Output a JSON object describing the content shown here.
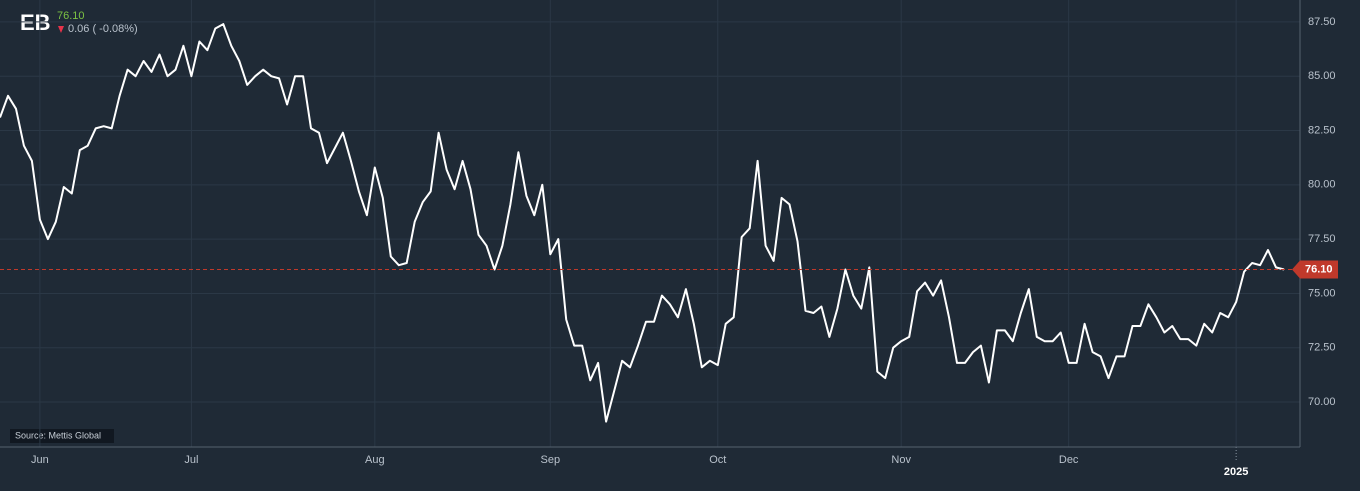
{
  "chart_data": {
    "type": "line",
    "ticker": "EB",
    "last_price": {
      "value": 76.1,
      "label": "76.10"
    },
    "change_text": "0.06 ( -0.08%)",
    "source": "Source: Mettis Global",
    "categories": [
      null,
      null,
      null,
      null,
      null,
      "Jun",
      null,
      null,
      null,
      null,
      null,
      null,
      null,
      null,
      null,
      null,
      null,
      null,
      null,
      null,
      null,
      null,
      null,
      null,
      "Jul",
      null,
      null,
      null,
      null,
      null,
      null,
      null,
      null,
      null,
      null,
      null,
      null,
      null,
      null,
      null,
      null,
      null,
      null,
      null,
      null,
      null,
      null,
      "Aug",
      null,
      null,
      null,
      null,
      null,
      null,
      null,
      null,
      null,
      null,
      null,
      null,
      null,
      null,
      null,
      null,
      null,
      null,
      null,
      null,
      null,
      "Sep",
      null,
      null,
      null,
      null,
      null,
      null,
      null,
      null,
      null,
      null,
      null,
      null,
      null,
      null,
      null,
      null,
      null,
      null,
      null,
      null,
      "Oct",
      null,
      null,
      null,
      null,
      null,
      null,
      null,
      null,
      null,
      null,
      null,
      null,
      null,
      null,
      null,
      null,
      null,
      null,
      null,
      null,
      null,
      null,
      "Nov",
      null,
      null,
      null,
      null,
      null,
      null,
      null,
      null,
      null,
      null,
      null,
      null,
      null,
      null,
      null,
      null,
      null,
      null,
      null,
      null,
      "Dec",
      null,
      null,
      null,
      null,
      null,
      null,
      null,
      null,
      null,
      null,
      null,
      null,
      null,
      null,
      null,
      null,
      null,
      null,
      null,
      null,
      "2025",
      null,
      null,
      null,
      null,
      null,
      null
    ],
    "series": [
      {
        "name": "EB",
        "color": "#ffffff",
        "values": [
          83.1,
          84.1,
          83.5,
          81.8,
          81.1,
          78.4,
          77.5,
          78.3,
          79.9,
          79.6,
          81.6,
          81.8,
          82.6,
          82.7,
          82.6,
          84.1,
          85.3,
          85.0,
          85.7,
          85.2,
          86.0,
          85.0,
          85.3,
          86.4,
          85.0,
          86.6,
          86.2,
          87.2,
          87.4,
          86.4,
          85.7,
          84.6,
          85.0,
          85.3,
          85.0,
          84.9,
          83.7,
          85.0,
          85.0,
          82.6,
          82.4,
          81.0,
          81.7,
          82.4,
          81.1,
          79.7,
          78.6,
          80.8,
          79.4,
          76.7,
          76.3,
          76.4,
          78.3,
          79.2,
          79.7,
          82.4,
          80.7,
          79.8,
          81.1,
          79.8,
          77.7,
          77.2,
          76.1,
          77.2,
          79.1,
          81.5,
          79.5,
          78.6,
          80.0,
          76.8,
          77.5,
          73.8,
          72.6,
          72.6,
          71.0,
          71.8,
          69.1,
          70.5,
          71.9,
          71.6,
          72.6,
          73.7,
          73.7,
          74.9,
          74.5,
          73.9,
          75.2,
          73.6,
          71.6,
          71.9,
          71.7,
          73.6,
          73.9,
          77.6,
          78.0,
          81.1,
          77.2,
          76.5,
          79.4,
          79.1,
          77.4,
          74.2,
          74.1,
          74.4,
          73.0,
          74.3,
          76.1,
          74.9,
          74.3,
          76.2,
          71.4,
          71.1,
          72.5,
          72.8,
          73.0,
          75.1,
          75.5,
          74.9,
          75.6,
          73.9,
          71.8,
          71.8,
          72.3,
          72.6,
          70.9,
          73.3,
          73.3,
          72.8,
          74.1,
          75.2,
          73.0,
          72.8,
          72.8,
          73.2,
          71.8,
          71.8,
          73.6,
          72.3,
          72.1,
          71.1,
          72.1,
          72.1,
          73.5,
          73.5,
          74.5,
          73.9,
          73.2,
          73.5,
          72.9,
          72.9,
          72.6,
          73.6,
          73.2,
          74.1,
          73.9,
          74.6,
          76.0,
          76.4,
          76.3,
          77.0,
          76.2,
          76.1
        ]
      }
    ],
    "ylim": [
      67.93,
      88.51
    ],
    "yticks": [
      {
        "value": 70,
        "label": "70.00"
      },
      {
        "value": 72.5,
        "label": "72.50"
      },
      {
        "value": 75,
        "label": "75.00"
      },
      {
        "value": 77.5,
        "label": "77.50"
      },
      {
        "value": 80,
        "label": "80.00"
      },
      {
        "value": 82.5,
        "label": "82.50"
      },
      {
        "value": 85,
        "label": "85.00"
      },
      {
        "value": 87.5,
        "label": "87.50"
      }
    ],
    "grid": true,
    "up_color": "#7cc243",
    "down_color": "#e8334a",
    "last_line_color": "#c0392b"
  }
}
